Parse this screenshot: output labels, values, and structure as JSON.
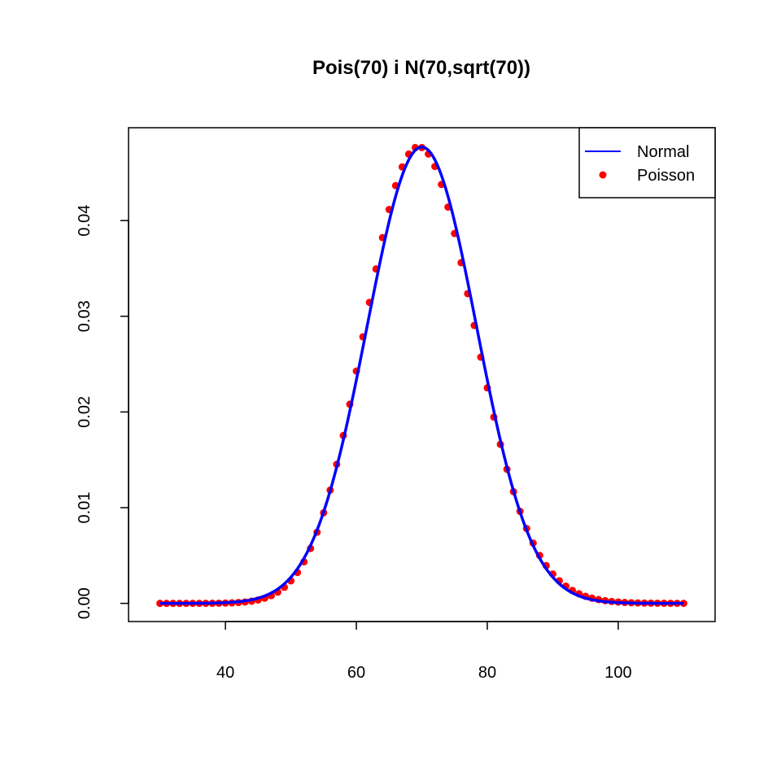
{
  "chart_data": {
    "type": "line",
    "title": "Pois(70) i N(70,sqrt(70))",
    "xlabel": "",
    "ylabel": "",
    "xlim": [
      25.2,
      114.8
    ],
    "ylim": [
      -0.0019,
      0.0497
    ],
    "x_ticks": [
      "40",
      "60",
      "80",
      "100"
    ],
    "y_ticks": [
      "0.00",
      "0.01",
      "0.02",
      "0.03",
      "0.04"
    ],
    "grid": false,
    "legend_position": "top-right",
    "series": [
      {
        "name": "Normal",
        "style": "line",
        "color": "#0000ff",
        "function": "normal_pdf",
        "mean": 70,
        "sd_expression": "sqrt(70)",
        "x_range": [
          30,
          110
        ]
      },
      {
        "name": "Poisson",
        "style": "points",
        "color": "#ff0000",
        "function": "poisson_pmf",
        "lambda": 70,
        "x_range": [
          30,
          110
        ]
      }
    ]
  }
}
